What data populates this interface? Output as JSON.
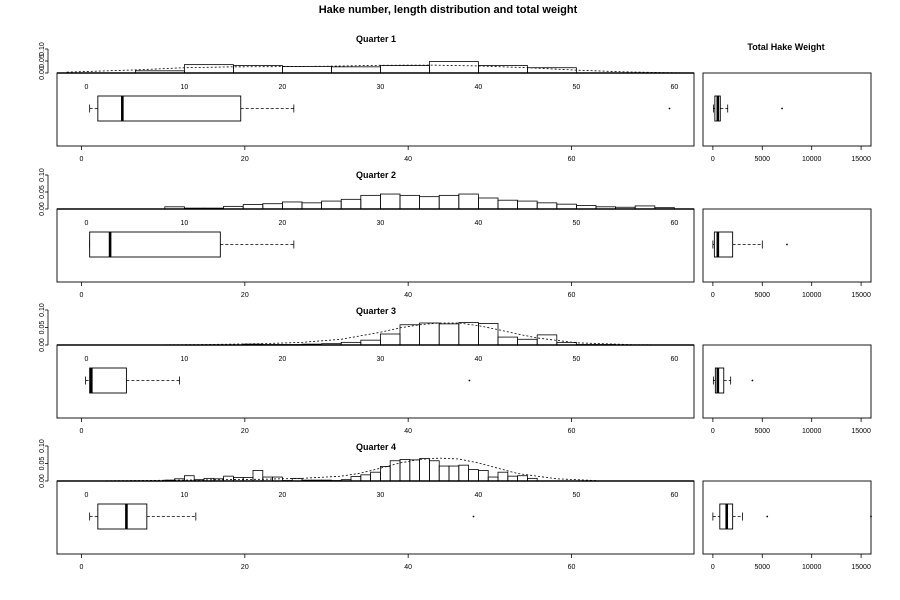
{
  "figure_title": "Hake number, length distribution and total weight",
  "weight_panel_title": "Total Hake Weight",
  "hist_y_ticks": [
    "0.00",
    "0.05",
    "0.10"
  ],
  "hist_x_ticks": [
    "0",
    "10",
    "20",
    "30",
    "40",
    "50",
    "60"
  ],
  "box_x_ticks": [
    "0",
    "20",
    "40",
    "60"
  ],
  "weight_x_ticks": [
    "0",
    "5000",
    "10000",
    "15000"
  ],
  "chart_data": [
    {
      "type": "histogram",
      "title": "Quarter 1",
      "x_range": [
        -3,
        62
      ],
      "y_range": [
        0,
        0.12
      ],
      "bin_edges": [
        5,
        10,
        15,
        20,
        25,
        30,
        35,
        40,
        45,
        50
      ],
      "densities": [
        0.01,
        0.038,
        0.034,
        0.03,
        0.028,
        0.034,
        0.052,
        0.034,
        0.024,
        0.008
      ],
      "density_curve": {
        "x": [
          -2,
          5,
          10,
          15,
          20,
          25,
          30,
          35,
          40,
          45,
          50,
          55,
          60,
          62
        ],
        "y": [
          0.004,
          0.014,
          0.024,
          0.028,
          0.029,
          0.031,
          0.035,
          0.036,
          0.032,
          0.024,
          0.013,
          0.005,
          0.001,
          0
        ]
      }
    },
    {
      "type": "boxplot",
      "title": "Quarter 1",
      "x_range": [
        -3,
        75
      ],
      "stats": {
        "whisker_low": 1,
        "q1": 2,
        "median": 5,
        "q3": 19.5,
        "whisker_high": 26
      },
      "outliers": [
        72
      ]
    },
    {
      "type": "boxplot",
      "title": "Total Hake Weight",
      "x_range": [
        -1000,
        16000
      ],
      "stats": {
        "whisker_low": 50,
        "q1": 200,
        "median": 500,
        "q3": 750,
        "whisker_high": 1500
      },
      "outliers": [
        7000
      ]
    },
    {
      "type": "histogram",
      "title": "Quarter 2",
      "x_range": [
        -3,
        62
      ],
      "y_range": [
        0,
        0.12
      ],
      "bin_edges": [
        8,
        10,
        12,
        14,
        16,
        18,
        20,
        22,
        24,
        26,
        28,
        30,
        32,
        34,
        36,
        38,
        40,
        42,
        44,
        46,
        48,
        50,
        52,
        54,
        56,
        58,
        60
      ],
      "densities": [
        0.01,
        0.004,
        0.004,
        0.012,
        0.02,
        0.024,
        0.032,
        0.028,
        0.036,
        0.044,
        0.062,
        0.068,
        0.062,
        0.056,
        0.062,
        0.068,
        0.05,
        0.04,
        0.036,
        0.028,
        0.022,
        0.016,
        0.01,
        0.008,
        0.014,
        0.006
      ]
    },
    {
      "type": "boxplot",
      "title": "Quarter 2",
      "x_range": [
        -3,
        75
      ],
      "stats": {
        "whisker_low": 1,
        "q1": 1,
        "median": 3.5,
        "q3": 17,
        "whisker_high": 26
      },
      "outliers": []
    },
    {
      "type": "boxplot",
      "title": "Total Hake Weight",
      "x_range": [
        -1000,
        16000
      ],
      "stats": {
        "whisker_low": 0,
        "q1": 150,
        "median": 500,
        "q3": 2000,
        "whisker_high": 5000
      },
      "outliers": [
        7500
      ]
    },
    {
      "type": "histogram",
      "title": "Quarter 3",
      "x_range": [
        -3,
        62
      ],
      "y_range": [
        0,
        0.12
      ],
      "bin_edges": [
        16,
        18,
        20,
        22,
        24,
        26,
        28,
        30,
        32,
        34,
        36,
        38,
        40,
        42,
        44,
        46,
        48,
        50,
        52,
        54
      ],
      "densities": [
        0.004,
        0.002,
        0.002,
        0.004,
        0.006,
        0.012,
        0.022,
        0.05,
        0.092,
        0.1,
        0.096,
        0.102,
        0.098,
        0.036,
        0.026,
        0.046,
        0.012,
        0.002,
        0.002
      ],
      "density_curve": {
        "x": [
          6,
          12,
          18,
          22,
          26,
          30,
          32,
          34,
          36,
          38,
          40,
          42,
          44,
          46,
          50,
          56,
          62
        ],
        "y": [
          0,
          0.002,
          0.006,
          0.012,
          0.026,
          0.058,
          0.078,
          0.092,
          0.1,
          0.1,
          0.088,
          0.07,
          0.05,
          0.032,
          0.01,
          0.001,
          0
        ]
      }
    },
    {
      "type": "boxplot",
      "title": "Quarter 3",
      "x_range": [
        -3,
        75
      ],
      "stats": {
        "whisker_low": 0.5,
        "q1": 1,
        "median": 1.2,
        "q3": 5.5,
        "whisker_high": 12
      },
      "outliers": [
        47.5
      ]
    },
    {
      "type": "boxplot",
      "title": "Total Hake Weight",
      "x_range": [
        -1000,
        16000
      ],
      "stats": {
        "whisker_low": 50,
        "q1": 250,
        "median": 500,
        "q3": 1100,
        "whisker_high": 1800
      },
      "outliers": [
        4000
      ]
    },
    {
      "type": "histogram",
      "title": "Quarter 4",
      "x_range": [
        -3,
        62
      ],
      "y_range": [
        0,
        0.12
      ],
      "bin_edges": [
        8,
        9,
        10,
        11,
        12,
        13,
        14,
        15,
        16,
        17,
        18,
        19,
        20,
        21,
        22,
        23,
        24,
        25,
        26,
        27,
        28,
        29,
        30,
        31,
        32,
        33,
        34,
        35,
        36,
        37,
        38,
        39,
        40,
        41,
        42,
        43,
        44,
        45,
        46
      ],
      "densities": [
        0.004,
        0.01,
        0.024,
        0.006,
        0.012,
        0.01,
        0.022,
        0.016,
        0.016,
        0.048,
        0.018,
        0.018,
        0.002,
        0.012,
        0.004,
        0.004,
        0.004,
        0.002,
        0.006,
        0.02,
        0.028,
        0.04,
        0.066,
        0.092,
        0.098,
        0.096,
        0.102,
        0.092,
        0.068,
        0.068,
        0.072,
        0.052,
        0.048,
        0.018,
        0.04,
        0.022,
        0.024,
        0.012
      ],
      "density_curve": {
        "x": [
          2,
          10,
          18,
          22,
          26,
          28,
          30,
          32,
          34,
          36,
          38,
          40,
          42,
          44,
          48,
          52
        ],
        "y": [
          0.001,
          0.004,
          0.008,
          0.012,
          0.022,
          0.036,
          0.058,
          0.082,
          0.098,
          0.104,
          0.1,
          0.082,
          0.058,
          0.034,
          0.01,
          0.002
        ]
      }
    },
    {
      "type": "boxplot",
      "title": "Quarter 4",
      "x_range": [
        -3,
        75
      ],
      "stats": {
        "whisker_low": 1,
        "q1": 2,
        "median": 5.5,
        "q3": 8,
        "whisker_high": 14
      },
      "outliers": [
        48
      ]
    },
    {
      "type": "boxplot",
      "title": "Total Hake Weight",
      "x_range": [
        -1000,
        16000
      ],
      "stats": {
        "whisker_low": 0,
        "q1": 700,
        "median": 1400,
        "q3": 2000,
        "whisker_high": 3000
      },
      "outliers": [
        5500,
        16000
      ]
    }
  ]
}
